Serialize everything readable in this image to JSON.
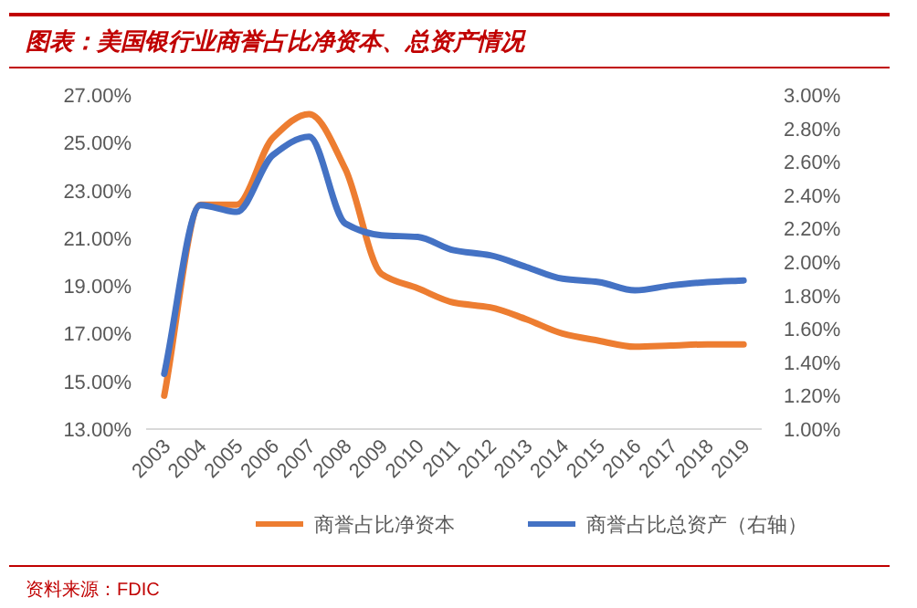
{
  "chart_data": {
    "type": "line",
    "title": "图表：美国银行业商誉占比净资本、总资产情况",
    "categories": [
      "2003",
      "2004",
      "2005",
      "2006",
      "2007",
      "2008",
      "2009",
      "2010",
      "2011",
      "2012",
      "2013",
      "2014",
      "2015",
      "2016",
      "2017",
      "2018",
      "2019"
    ],
    "series": [
      {
        "name": "商誉占比净资本",
        "color": "#ed7d31",
        "values": [
          14.4,
          22.4,
          22.4,
          25.2,
          26.2,
          23.9,
          19.5,
          18.9,
          18.3,
          18.1,
          17.6,
          17.0,
          16.7,
          16.45,
          16.5,
          16.55,
          16.55
        ]
      },
      {
        "name": "商誉占比总资产（右轴）",
        "color": "#4472c4",
        "axis": "y2",
        "values": [
          1.33,
          2.34,
          2.3,
          2.64,
          2.75,
          2.23,
          2.16,
          2.15,
          2.07,
          2.04,
          1.97,
          1.9,
          1.88,
          1.83,
          1.86,
          1.88,
          1.89
        ]
      }
    ],
    "ylim": [
      13,
      27
    ],
    "yticks": [
      {
        "value": 13,
        "label": "13.00%"
      },
      {
        "value": 15,
        "label": "15.00%"
      },
      {
        "value": 17,
        "label": "17.00%"
      },
      {
        "value": 19,
        "label": "19.00%"
      },
      {
        "value": 21,
        "label": "21.00%"
      },
      {
        "value": 23,
        "label": "23.00%"
      },
      {
        "value": 25,
        "label": "25.00%"
      },
      {
        "value": 27,
        "label": "27.00%"
      }
    ],
    "y2lim": [
      1,
      3
    ],
    "y2ticks": [
      {
        "value": 1,
        "label": "1.00%"
      },
      {
        "value": 1.2,
        "label": "1.20%"
      },
      {
        "value": 1.4,
        "label": "1.40%"
      },
      {
        "value": 1.6,
        "label": "1.60%"
      },
      {
        "value": 1.8,
        "label": "1.80%"
      },
      {
        "value": 2,
        "label": "2.00%"
      },
      {
        "value": 2.2,
        "label": "2.20%"
      },
      {
        "value": 2.4,
        "label": "2.40%"
      },
      {
        "value": 2.6,
        "label": "2.60%"
      },
      {
        "value": 2.8,
        "label": "2.80%"
      },
      {
        "value": 3,
        "label": "3.00%"
      }
    ],
    "legend": "bottom",
    "grid": false,
    "marker": "none",
    "line_style": "solid",
    "annotations": [
      "资料来源：FDIC"
    ]
  }
}
